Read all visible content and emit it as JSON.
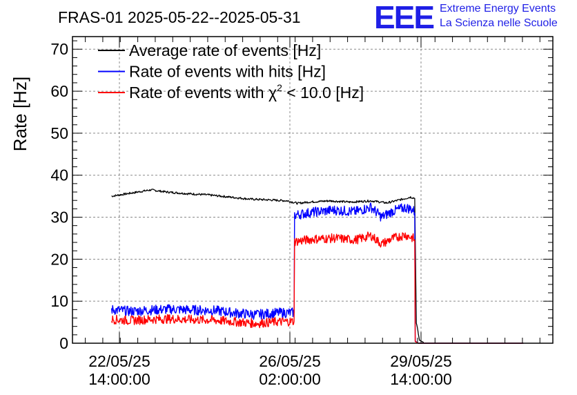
{
  "brand": {
    "logo": "EEE",
    "line1": "Extreme Energy Events",
    "line2": "La Scienza nelle Scuole",
    "color": "#1f1fe6"
  },
  "chart_data": {
    "type": "line",
    "title": "FRAS-01 2025-05-22--2025-05-31",
    "ylabel": "Rate [Hz]",
    "xlabel": "",
    "ylim": [
      0,
      73
    ],
    "yticks": [
      0,
      10,
      20,
      30,
      40,
      50,
      60,
      70
    ],
    "xlim": [
      0,
      10
    ],
    "xticks": [
      {
        "x": 1.0,
        "date": "22/05/25",
        "time": "14:00:00"
      },
      {
        "x": 4.25,
        "date": "26/05/25",
        "time": "02:00:00"
      },
      {
        "x": 6.75,
        "date": "29/05/25",
        "time": "14:00:00"
      }
    ],
    "grid": true,
    "legend_position": "top-left",
    "series": [
      {
        "name": "Average rate of events [Hz]",
        "color": "#000000",
        "x": [
          0.85,
          1.0,
          1.3,
          1.6,
          1.9,
          2.3,
          2.7,
          3.1,
          3.5,
          3.9,
          4.2,
          4.4,
          4.6,
          5.0,
          5.4,
          5.8,
          6.1,
          6.4,
          6.55,
          6.63,
          6.66,
          6.72,
          6.8
        ],
        "values": [
          35.0,
          35.3,
          35.9,
          36.5,
          36.0,
          35.6,
          35.3,
          34.8,
          34.3,
          34.1,
          33.9,
          33.3,
          33.6,
          33.9,
          33.6,
          33.9,
          33.4,
          34.3,
          34.8,
          34.5,
          5.0,
          0.7,
          0.2
        ]
      },
      {
        "name": "Rate of events with hits [Hz]",
        "color": "#0000ff",
        "x": [
          0.85,
          1.2,
          1.6,
          2.0,
          2.4,
          2.8,
          3.2,
          3.6,
          4.0,
          4.33,
          4.34,
          4.7,
          5.1,
          5.5,
          5.8,
          6.0,
          6.2,
          6.45,
          6.6,
          6.63,
          6.64,
          6.7,
          8.7
        ],
        "values": [
          8.0,
          7.6,
          7.9,
          8.1,
          7.9,
          7.8,
          7.2,
          6.8,
          7.2,
          7.3,
          30.5,
          31.2,
          31.7,
          31.3,
          32.4,
          30.0,
          31.4,
          32.3,
          31.8,
          31.0,
          0.5,
          0.0,
          0.0
        ]
      },
      {
        "name": "Rate of events with χ² < 10.0 [Hz]",
        "color": "#ff0000",
        "x": [
          0.85,
          1.2,
          1.6,
          2.0,
          2.4,
          2.8,
          3.2,
          3.6,
          4.0,
          4.33,
          4.34,
          4.7,
          5.1,
          5.5,
          5.8,
          6.0,
          6.2,
          6.45,
          6.6,
          6.63,
          6.64,
          6.7,
          8.7
        ],
        "values": [
          5.7,
          5.4,
          5.7,
          5.8,
          5.6,
          5.5,
          5.1,
          4.7,
          5.1,
          5.2,
          24.2,
          24.8,
          25.0,
          24.6,
          25.6,
          23.6,
          24.9,
          25.8,
          25.0,
          24.5,
          0.4,
          0.0,
          0.0
        ]
      }
    ],
    "legend": [
      {
        "text": "Average rate of events [Hz]",
        "color": "#000000"
      },
      {
        "text": "Rate of events with hits [Hz]",
        "color": "#0000ff"
      },
      {
        "text_prefix": "Rate of events with ",
        "symbol": "χ",
        "sup": "2",
        "text_suffix": " < 10.0 [Hz]",
        "color": "#ff0000"
      }
    ]
  }
}
